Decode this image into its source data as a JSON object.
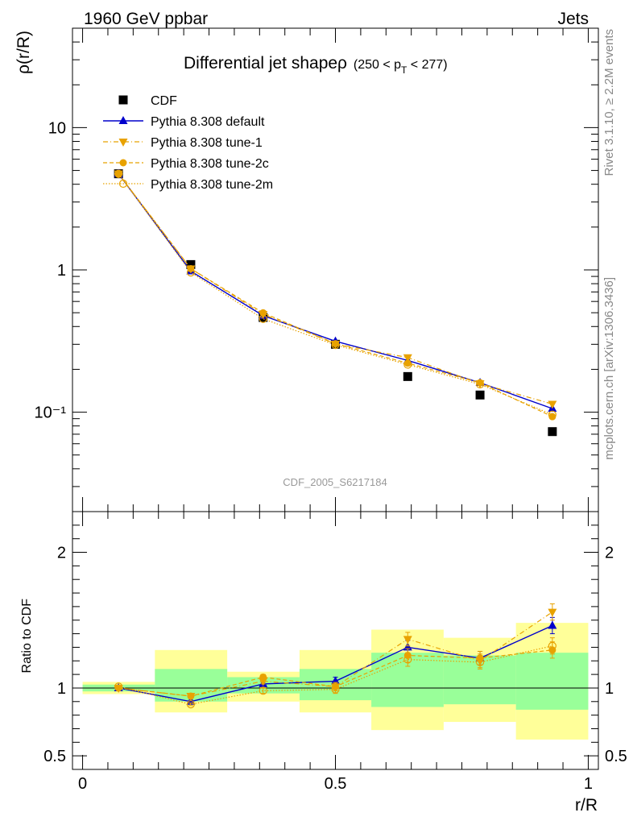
{
  "header": {
    "left": "1960 GeV ppbar",
    "right": "Jets"
  },
  "side_text": {
    "rivet": "Rivet 3.1.10, ≥ 2.2M events",
    "mcplots": "mcplots.cern.ch [arXiv:1306.3436]"
  },
  "watermark": "CDF_2005_S6217184",
  "colors": {
    "cdf": "#000000",
    "default": "#0000cc",
    "tunes": "#e8a200",
    "band_inner": "#99ff99",
    "band_outer": "#ffff99"
  },
  "chart_data": [
    {
      "type": "line",
      "title": "Differential jet shapeρ",
      "title_suffix": "(250 < p",
      "title_sub": "T",
      "title_end": " < 277)",
      "xlabel": "",
      "ylabel": "ρ(r/R)",
      "xlim": [
        -0.02,
        1.02
      ],
      "ylim": [
        0.02,
        50
      ],
      "yscale": "log",
      "y_tick_labels": [
        "10⁻¹",
        "1",
        "10"
      ],
      "x": [
        0.071,
        0.214,
        0.357,
        0.5,
        0.643,
        0.786,
        0.929
      ],
      "series": [
        {
          "name": "CDF",
          "marker": "square",
          "values": [
            4.74,
            1.09,
            0.463,
            0.3,
            0.178,
            0.132,
            0.073
          ]
        },
        {
          "name": "Pythia 8.308 default",
          "marker": "triangle-up",
          "values": [
            4.74,
            0.98,
            0.477,
            0.315,
            0.231,
            0.161,
            0.106
          ]
        },
        {
          "name": "Pythia 8.308 tune-1",
          "marker": "triangle-down",
          "values": [
            4.74,
            1.02,
            0.488,
            0.302,
            0.242,
            0.159,
            0.114
          ]
        },
        {
          "name": "Pythia 8.308 tune-2c",
          "marker": "circle",
          "values": [
            4.74,
            1.02,
            0.499,
            0.303,
            0.221,
            0.161,
            0.093
          ]
        },
        {
          "name": "Pythia 8.308 tune-2m",
          "marker": "circle-open",
          "values": [
            4.74,
            0.96,
            0.453,
            0.297,
            0.216,
            0.157,
            0.096
          ]
        }
      ],
      "legend_position": "top-left"
    },
    {
      "type": "line",
      "xlabel": "r/R",
      "ylabel": "Ratio to CDF",
      "xlim": [
        -0.02,
        1.02
      ],
      "ylim": [
        0.4,
        2.3
      ],
      "x_tick_labels": [
        "0",
        "0.5",
        "1"
      ],
      "y_tick_labels": [
        "0.5",
        "1",
        "2"
      ],
      "x": [
        0.071,
        0.214,
        0.357,
        0.5,
        0.643,
        0.786,
        0.929
      ],
      "bin_edges": [
        0.0,
        0.143,
        0.286,
        0.429,
        0.571,
        0.714,
        0.857,
        1.0
      ],
      "band_inner": [
        [
          0.975,
          1.025
        ],
        [
          0.9,
          1.14
        ],
        [
          0.96,
          1.08
        ],
        [
          0.91,
          1.14
        ],
        [
          0.86,
          1.26
        ],
        [
          0.88,
          1.24
        ],
        [
          0.84,
          1.26
        ]
      ],
      "band_outer": [
        [
          0.955,
          1.045
        ],
        [
          0.82,
          1.28
        ],
        [
          0.9,
          1.12
        ],
        [
          0.82,
          1.28
        ],
        [
          0.69,
          1.43
        ],
        [
          0.75,
          1.37
        ],
        [
          0.62,
          1.48
        ]
      ],
      "series": [
        {
          "name": "Pythia 8.308 default",
          "values": [
            1.0,
            0.9,
            1.03,
            1.05,
            1.3,
            1.22,
            1.46
          ],
          "errors": [
            0.01,
            0.01,
            0.02,
            0.03,
            0.05,
            0.05,
            0.06
          ]
        },
        {
          "name": "Pythia 8.308 tune-1",
          "values": [
            1.0,
            0.94,
            1.05,
            1.01,
            1.36,
            1.2,
            1.56
          ],
          "errors": [
            0.01,
            0.01,
            0.02,
            0.03,
            0.05,
            0.05,
            0.06
          ]
        },
        {
          "name": "Pythia 8.308 tune-2c",
          "values": [
            1.0,
            0.94,
            1.08,
            1.01,
            1.24,
            1.22,
            1.28
          ],
          "errors": [
            0.01,
            0.01,
            0.02,
            0.03,
            0.05,
            0.05,
            0.06
          ]
        },
        {
          "name": "Pythia 8.308 tune-2m",
          "values": [
            1.01,
            0.88,
            0.98,
            0.99,
            1.21,
            1.19,
            1.31
          ],
          "errors": [
            0.01,
            0.01,
            0.02,
            0.03,
            0.05,
            0.05,
            0.06
          ]
        }
      ]
    }
  ]
}
